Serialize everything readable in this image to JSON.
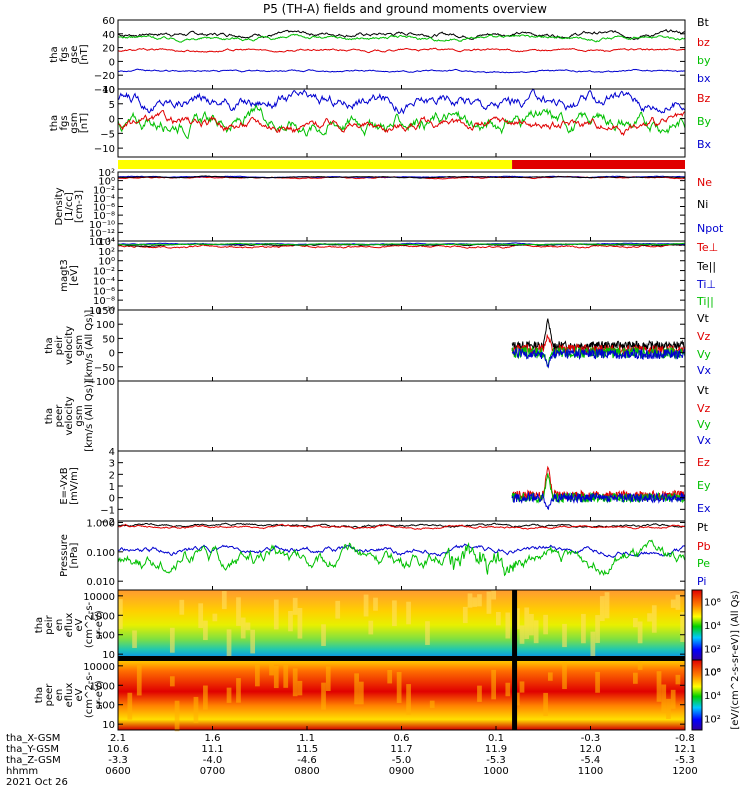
{
  "title": "P5 (TH-A) fields and ground moments overview",
  "colors": {
    "black": "#000000",
    "red": "#e00000",
    "green": "#00c000",
    "blue": "#0000d0",
    "yellow": "#ffff00"
  },
  "panels": [
    {
      "id": "fgs-gse",
      "ylabel": [
        "tha",
        "fgs",
        "gse",
        "[nT]"
      ],
      "scale": "linear",
      "ylim": [
        -40,
        60
      ],
      "ticks": [
        {
          "v": 60,
          "l": "60"
        },
        {
          "v": 40,
          "l": "40"
        },
        {
          "v": 20,
          "l": "20"
        },
        {
          "v": 0,
          "l": "0"
        },
        {
          "v": -20,
          "l": "−20"
        },
        {
          "v": -40,
          "l": "−40"
        }
      ],
      "legend": [
        {
          "t": "Bt",
          "c": "black"
        },
        {
          "t": "bz",
          "c": "red"
        },
        {
          "t": "by",
          "c": "green"
        },
        {
          "t": "bx",
          "c": "blue"
        }
      ]
    },
    {
      "id": "fgs-gsm",
      "ylabel": [
        "tha",
        "fgs",
        "gsm",
        "[nT]"
      ],
      "scale": "linear",
      "ylim": [
        -13,
        10
      ],
      "ticks": [
        {
          "v": 10,
          "l": "10"
        },
        {
          "v": 5,
          "l": "5"
        },
        {
          "v": 0,
          "l": "0"
        },
        {
          "v": -5,
          "l": "−5"
        },
        {
          "v": -10,
          "l": "−10"
        }
      ],
      "legend": [
        {
          "t": "Bz",
          "c": "red"
        },
        {
          "t": "By",
          "c": "green"
        },
        {
          "t": "Bx",
          "c": "blue"
        }
      ]
    },
    {
      "id": "density",
      "ylabel": [
        "Density",
        "[1/cc]",
        "[cm-3]"
      ],
      "scale": "log",
      "ylim": [
        -14,
        2
      ],
      "ticks": [
        {
          "v": 2,
          "l": "10²"
        },
        {
          "v": 0,
          "l": "10⁰"
        },
        {
          "v": -2,
          "l": "10⁻²"
        },
        {
          "v": -4,
          "l": "10⁻⁴"
        },
        {
          "v": -6,
          "l": "10⁻⁶"
        },
        {
          "v": -8,
          "l": "10⁻⁸"
        },
        {
          "v": -10,
          "l": "10⁻¹⁰"
        },
        {
          "v": -12,
          "l": "10⁻¹²"
        },
        {
          "v": -14,
          "l": "10⁻¹⁴"
        }
      ],
      "legend": [
        {
          "t": "Ne",
          "c": "red"
        },
        {
          "t": "Ni",
          "c": "black"
        },
        {
          "t": "Npot",
          "c": "blue"
        }
      ]
    },
    {
      "id": "temperature",
      "ylabel": [
        "magt3",
        "[eV]"
      ],
      "scale": "log",
      "ylim": [
        -10,
        4
      ],
      "ticks": [
        {
          "v": 4,
          "l": "10⁴"
        },
        {
          "v": 2,
          "l": "10²"
        },
        {
          "v": 0,
          "l": "10⁰"
        },
        {
          "v": -2,
          "l": "10⁻²"
        },
        {
          "v": -4,
          "l": "10⁻⁴"
        },
        {
          "v": -6,
          "l": "10⁻⁶"
        },
        {
          "v": -8,
          "l": "10⁻⁸"
        },
        {
          "v": -10,
          "l": "10⁻¹⁰"
        }
      ],
      "legend": [
        {
          "t": "Te⊥",
          "c": "red"
        },
        {
          "t": "Te||",
          "c": "black"
        },
        {
          "t": "Ti⊥",
          "c": "blue"
        },
        {
          "t": "Ti||",
          "c": "green"
        }
      ]
    },
    {
      "id": "peir-velocity",
      "ylabel": [
        "tha",
        "peir",
        "velocity",
        "gsm",
        "[km/s (All Qs)]"
      ],
      "scale": "linear",
      "ylim": [
        -100,
        150
      ],
      "ticks": [
        {
          "v": 150,
          "l": "150"
        },
        {
          "v": 100,
          "l": "100"
        },
        {
          "v": 50,
          "l": "50"
        },
        {
          "v": 0,
          "l": "0"
        },
        {
          "v": -50,
          "l": "−50"
        },
        {
          "v": -100,
          "l": "−100"
        }
      ],
      "legend": [
        {
          "t": "Vt",
          "c": "black"
        },
        {
          "t": "Vz",
          "c": "red"
        },
        {
          "t": "Vy",
          "c": "green"
        },
        {
          "t": "Vx",
          "c": "blue"
        }
      ]
    },
    {
      "id": "peer-velocity",
      "ylabel": [
        "tha",
        "peer",
        "velocity",
        "gsm",
        "[km/s (All Qs)]"
      ],
      "scale": "linear",
      "ylim": [
        0,
        1
      ],
      "ticks": [],
      "legend": [
        {
          "t": "Vt",
          "c": "black"
        },
        {
          "t": "Vz",
          "c": "red"
        },
        {
          "t": "Vy",
          "c": "green"
        },
        {
          "t": "Vx",
          "c": "blue"
        }
      ]
    },
    {
      "id": "efield",
      "ylabel": [
        "E=-VxB",
        "[mV/m]"
      ],
      "scale": "linear",
      "ylim": [
        -2,
        4
      ],
      "ticks": [
        {
          "v": 4,
          "l": "4"
        },
        {
          "v": 3,
          "l": "3"
        },
        {
          "v": 2,
          "l": "2"
        },
        {
          "v": 1,
          "l": "1"
        },
        {
          "v": 0,
          "l": "0"
        },
        {
          "v": -1,
          "l": "−1"
        },
        {
          "v": -2,
          "l": "−2"
        }
      ],
      "legend": [
        {
          "t": "Ez",
          "c": "red"
        },
        {
          "t": "Ey",
          "c": "green"
        },
        {
          "t": "Ex",
          "c": "blue"
        }
      ]
    },
    {
      "id": "pressure",
      "ylabel": [
        "Pressure",
        "[nPa]"
      ],
      "scale": "log",
      "ylim": [
        -2.3,
        0.05
      ],
      "ticks": [
        {
          "v": 0,
          "l": "1.000"
        },
        {
          "v": -1,
          "l": "0.100"
        },
        {
          "v": -2,
          "l": "0.010"
        }
      ],
      "legend": [
        {
          "t": "Pt",
          "c": "black"
        },
        {
          "t": "Pb",
          "c": "red"
        },
        {
          "t": "Pe",
          "c": "green"
        },
        {
          "t": "Pi",
          "c": "blue"
        }
      ]
    },
    {
      "id": "peir-eflux",
      "ylabel": [
        "tha",
        "peir",
        "en",
        "eflux",
        "eV",
        "(cm^2-s-",
        "sr-eV)"
      ],
      "scale": "log",
      "ylim": [
        0.7,
        4.3
      ],
      "ticks": [
        {
          "v": 4,
          "l": "10000"
        },
        {
          "v": 3,
          "l": "1000"
        },
        {
          "v": 2,
          "l": "100"
        },
        {
          "v": 1,
          "l": "10"
        }
      ],
      "legend": []
    },
    {
      "id": "peer-eflux",
      "ylabel": [
        "tha",
        "peer",
        "en",
        "eflux",
        "eV",
        "(cm^2-s-",
        "sr-eV)"
      ],
      "scale": "log",
      "ylim": [
        0.7,
        4.3
      ],
      "ticks": [
        {
          "v": 4,
          "l": "10000"
        },
        {
          "v": 3,
          "l": "1000"
        },
        {
          "v": 2,
          "l": "100"
        },
        {
          "v": 1,
          "l": "10"
        }
      ],
      "legend": []
    }
  ],
  "colorbar": {
    "ticks_top": [
      {
        "v": 6,
        "l": "10⁶"
      },
      {
        "v": 4,
        "l": "10⁴"
      },
      {
        "v": 2,
        "l": "10²"
      },
      {
        "v": 0,
        "l": "10⁰"
      }
    ],
    "ticks_bottom": [
      {
        "v": 6,
        "l": "10⁶"
      },
      {
        "v": 4,
        "l": "10⁴"
      },
      {
        "v": 2,
        "l": "10²"
      }
    ],
    "label": "[eV/(cm^2-s-sr-eV)] (All Qs)"
  },
  "xaxis": {
    "rows": [
      {
        "label": "tha_X-GSM",
        "values": [
          "2.1",
          "1.6",
          "1.1",
          "0.6",
          "0.1",
          "-0.3",
          "-0.8"
        ]
      },
      {
        "label": "tha_Y-GSM",
        "values": [
          "10.6",
          "11.1",
          "11.5",
          "11.7",
          "11.9",
          "12.0",
          "12.1"
        ]
      },
      {
        "label": "tha_Z-GSM",
        "values": [
          "-3.3",
          "-4.0",
          "-4.6",
          "-5.0",
          "-5.3",
          "-5.4",
          "-5.3"
        ]
      },
      {
        "label": "hhmm",
        "values": [
          "0600",
          "0700",
          "0800",
          "0900",
          "1000",
          "1100",
          "1200"
        ]
      }
    ],
    "date": "2021 Oct 26",
    "t_range": [
      6,
      12
    ],
    "tick_hours": [
      6,
      7,
      8,
      9,
      10,
      11,
      12
    ]
  },
  "chart_data": {
    "type": "line",
    "title": "P5 (TH-A) fields and ground moments overview",
    "xlabel": "hhmm",
    "x_range": [
      "0600",
      "1200"
    ],
    "x_categories": [
      "0600",
      "0700",
      "0800",
      "0900",
      "1000",
      "1100",
      "1200"
    ],
    "mode_bar": {
      "segments": [
        {
          "from": 6.0,
          "to": 10.17,
          "color": "yellow"
        },
        {
          "from": 10.17,
          "to": 12.0,
          "color": "red"
        }
      ]
    },
    "series": [
      {
        "panel": "fgs-gse",
        "name": "Bt",
        "color": "black",
        "level": 40,
        "spread": 3.5
      },
      {
        "panel": "fgs-gse",
        "name": "bz",
        "color": "red",
        "level": 16,
        "spread": 2
      },
      {
        "panel": "fgs-gse",
        "name": "by",
        "color": "green",
        "level": 34,
        "spread": 3
      },
      {
        "panel": "fgs-gse",
        "name": "bx",
        "color": "blue",
        "level": -14,
        "spread": 1.5
      },
      {
        "panel": "fgs-gsm",
        "name": "Bx",
        "color": "blue",
        "level": 6,
        "spread": 2.5
      },
      {
        "panel": "fgs-gsm",
        "name": "By",
        "color": "green",
        "level": -1,
        "spread": 3
      },
      {
        "panel": "fgs-gsm",
        "name": "Bz",
        "color": "red",
        "level": -2,
        "spread": 2
      },
      {
        "panel": "density",
        "name": "Ne",
        "color": "red",
        "level": 0.7,
        "spread": 0.15
      },
      {
        "panel": "density",
        "name": "Npot",
        "color": "blue",
        "level": 0.9,
        "spread": 0.1
      },
      {
        "panel": "density",
        "name": "Ni",
        "color": "black",
        "level": 0.8,
        "spread": 0.1
      },
      {
        "panel": "temperature",
        "name": "Te⊥",
        "color": "red",
        "level": 2.9,
        "spread": 0.25
      },
      {
        "panel": "temperature",
        "name": "Te||",
        "color": "black",
        "level": 3.2,
        "spread": 0.15
      },
      {
        "panel": "temperature",
        "name": "Ti⊥",
        "color": "blue",
        "level": 3.4,
        "spread": 0.1
      },
      {
        "panel": "temperature",
        "name": "Ti||",
        "color": "green",
        "level": 3.3,
        "spread": 0.1
      },
      {
        "panel": "pressure",
        "name": "Pt",
        "color": "black",
        "level": -0.1,
        "spread": 0.05
      },
      {
        "panel": "pressure",
        "name": "Pb",
        "color": "red",
        "level": -0.15,
        "spread": 0.05
      },
      {
        "panel": "pressure",
        "name": "Pi",
        "color": "blue",
        "level": -0.95,
        "spread": 0.12
      },
      {
        "panel": "pressure",
        "name": "Pe",
        "color": "green",
        "level": -1.2,
        "spread": 0.3
      }
    ],
    "burst_series": [
      {
        "panel": "peir-velocity",
        "name": "Vt",
        "color": "black",
        "level": 25,
        "spread": 15,
        "peak": 120
      },
      {
        "panel": "peir-velocity",
        "name": "Vz",
        "color": "red",
        "level": 10,
        "spread": 18,
        "peak": 60
      },
      {
        "panel": "peir-velocity",
        "name": "Vy",
        "color": "green",
        "level": 0,
        "spread": 20,
        "peak": -40
      },
      {
        "panel": "peir-velocity",
        "name": "Vx",
        "color": "blue",
        "level": -5,
        "spread": 18,
        "peak": -50
      },
      {
        "panel": "efield",
        "name": "Ez",
        "color": "red",
        "level": 0.2,
        "spread": 0.4,
        "peak": 2.8
      },
      {
        "panel": "efield",
        "name": "Ey",
        "color": "green",
        "level": 0.0,
        "spread": 0.4,
        "peak": 2.0
      },
      {
        "panel": "efield",
        "name": "Ex",
        "color": "blue",
        "level": 0.0,
        "spread": 0.4,
        "peak": -1.0
      }
    ],
    "burst_window": {
      "from": 10.17,
      "to": 12.0,
      "peak_at": 10.55
    }
  }
}
